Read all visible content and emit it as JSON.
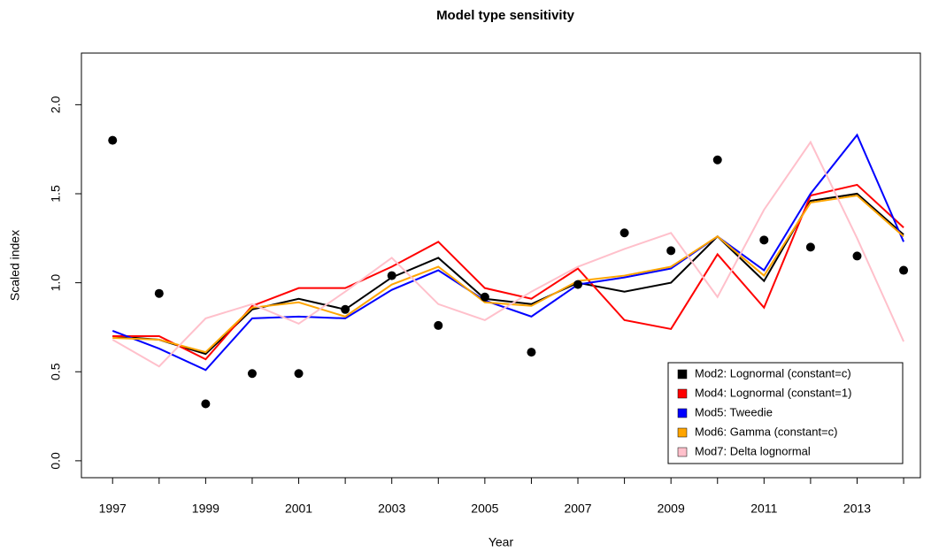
{
  "chart_data": {
    "type": "line",
    "title": "Model type sensitivity",
    "x_label": "Year",
    "y_label": "Scaled index",
    "x": [
      1997,
      1998,
      1999,
      2000,
      2001,
      2002,
      2003,
      2004,
      2005,
      2006,
      2007,
      2008,
      2009,
      2010,
      2011,
      2012,
      2013,
      2014
    ],
    "series": [
      {
        "name": "Mod2: Lognormal (constant=c)",
        "color": "#000000",
        "values": [
          0.7,
          0.68,
          0.6,
          0.85,
          0.91,
          0.85,
          1.03,
          1.14,
          0.91,
          0.88,
          1.0,
          0.95,
          1.0,
          1.26,
          1.01,
          1.46,
          1.5,
          1.27
        ]
      },
      {
        "name": "Mod4: Lognormal (constant=1)",
        "color": "#ff0000",
        "values": [
          0.7,
          0.7,
          0.57,
          0.87,
          0.97,
          0.97,
          1.09,
          1.23,
          0.97,
          0.91,
          1.08,
          0.79,
          0.74,
          1.16,
          0.86,
          1.49,
          1.55,
          1.31
        ]
      },
      {
        "name": "Mod5: Tweedie",
        "color": "#0000ff",
        "values": [
          0.73,
          0.63,
          0.51,
          0.8,
          0.81,
          0.8,
          0.96,
          1.07,
          0.9,
          0.81,
          0.99,
          1.03,
          1.08,
          1.26,
          1.07,
          1.5,
          1.83,
          1.23
        ]
      },
      {
        "name": "Mod6: Gamma (constant=c)",
        "color": "#ffa500",
        "values": [
          0.69,
          0.68,
          0.61,
          0.86,
          0.89,
          0.81,
          0.99,
          1.09,
          0.89,
          0.87,
          1.01,
          1.04,
          1.09,
          1.26,
          1.04,
          1.45,
          1.49,
          1.26
        ]
      },
      {
        "name": "Mod7: Delta lognormal",
        "color": "#ffc0cb",
        "values": [
          0.68,
          0.53,
          0.8,
          0.88,
          0.77,
          0.95,
          1.14,
          0.88,
          0.79,
          0.95,
          1.09,
          1.19,
          1.28,
          0.92,
          1.41,
          1.79,
          1.25,
          0.67
        ]
      }
    ],
    "points": {
      "color": "#000000",
      "values": [
        1.8,
        0.94,
        0.32,
        0.49,
        0.49,
        0.85,
        1.04,
        0.76,
        0.92,
        0.61,
        0.99,
        1.28,
        1.18,
        1.69,
        1.24,
        1.2,
        1.15,
        1.07
      ]
    },
    "xlim": [
      1996.33,
      2014.36
    ],
    "ylim": [
      -0.095,
      2.29
    ],
    "xticks": [
      1997,
      1999,
      2001,
      2003,
      2005,
      2007,
      2009,
      2011,
      2013
    ],
    "xminorticks": [
      1998,
      2000,
      2002,
      2004,
      2006,
      2008,
      2010,
      2012,
      2014
    ],
    "yticks": [
      {
        "value": 0,
        "label": "0.0"
      },
      0.5,
      {
        "value": 1,
        "label": "1.0"
      },
      1.5,
      {
        "value": 2,
        "label": "2.0"
      }
    ],
    "legend": "bottomright"
  }
}
